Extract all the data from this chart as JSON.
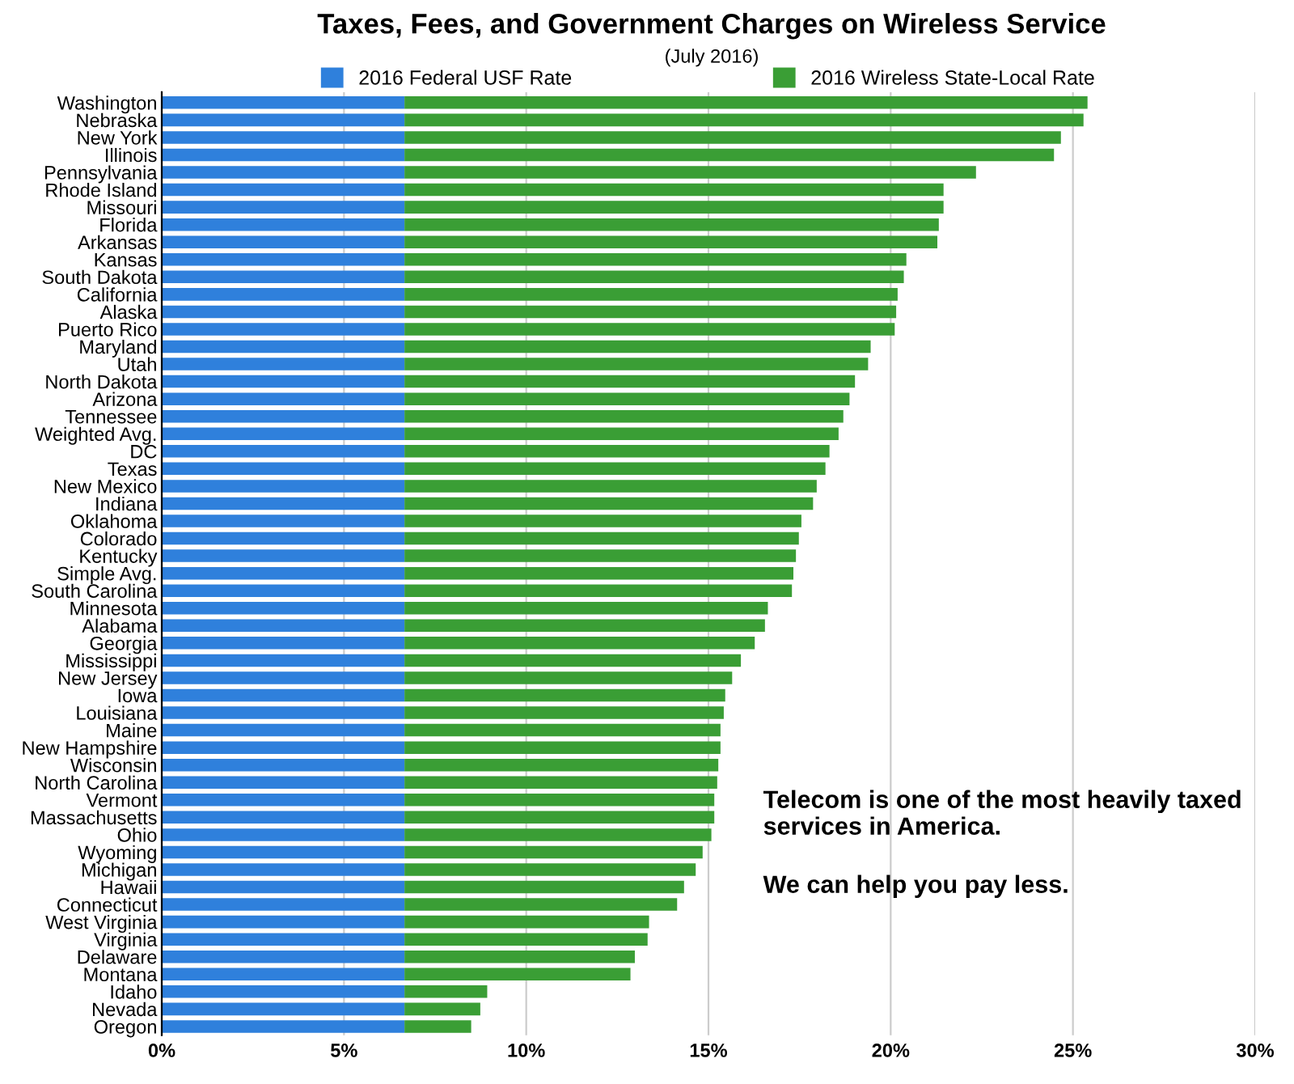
{
  "chart_data": {
    "type": "bar",
    "orientation": "horizontal",
    "stacked": true,
    "title": "Taxes, Fees, and Government Charges on Wireless Service",
    "subtitle": "(July 2016)",
    "categories": [
      "Washington",
      "Nebraska",
      "New York",
      "Illinois",
      "Pennsylvania",
      "Rhode Island",
      "Missouri",
      "Florida",
      "Arkansas",
      "Kansas",
      "South Dakota",
      "California",
      "Alaska",
      "Puerto Rico",
      "Maryland",
      "Utah",
      "North Dakota",
      "Arizona",
      "Tennessee",
      "Weighted Avg.",
      "DC",
      "Texas",
      "New Mexico",
      "Indiana",
      "Oklahoma",
      "Colorado",
      "Kentucky",
      "Simple Avg.",
      "South Carolina",
      "Minnesota",
      "Alabama",
      "Georgia",
      "Mississippi",
      "New Jersey",
      "Iowa",
      "Louisiana",
      "Maine",
      "New Hampshire",
      "Wisconsin",
      "North Carolina",
      "Vermont",
      "Massachusetts",
      "Ohio",
      "Wyoming",
      "Michigan",
      "Hawaii",
      "Connecticut",
      "West Virginia",
      "Virginia",
      "Delaware",
      "Montana",
      "Idaho",
      "Nevada",
      "Oregon"
    ],
    "series": [
      {
        "name": "2016 Federal USF Rate",
        "color": "#2f80dc",
        "values": [
          6.66,
          6.66,
          6.66,
          6.66,
          6.66,
          6.66,
          6.66,
          6.66,
          6.66,
          6.66,
          6.66,
          6.66,
          6.66,
          6.66,
          6.66,
          6.66,
          6.66,
          6.66,
          6.66,
          6.66,
          6.66,
          6.66,
          6.66,
          6.66,
          6.66,
          6.66,
          6.66,
          6.66,
          6.66,
          6.66,
          6.66,
          6.66,
          6.66,
          6.66,
          6.66,
          6.66,
          6.66,
          6.66,
          6.66,
          6.66,
          6.66,
          6.66,
          6.66,
          6.66,
          6.66,
          6.66,
          6.66,
          6.66,
          6.66,
          6.66,
          6.66,
          6.66,
          6.66,
          6.66
        ]
      },
      {
        "name": "2016 Wireless State-Local Rate",
        "color": "#3a9e35",
        "values": [
          18.74,
          18.63,
          18.01,
          17.82,
          15.68,
          14.79,
          14.79,
          14.66,
          14.62,
          13.77,
          13.7,
          13.53,
          13.49,
          13.45,
          12.79,
          12.72,
          12.36,
          12.21,
          12.04,
          11.91,
          11.66,
          11.55,
          11.31,
          11.21,
          10.89,
          10.82,
          10.74,
          10.67,
          10.63,
          9.97,
          9.89,
          9.61,
          9.23,
          8.99,
          8.8,
          8.76,
          8.67,
          8.67,
          8.61,
          8.58,
          8.5,
          8.5,
          8.42,
          8.18,
          7.99,
          7.67,
          7.48,
          6.71,
          6.67,
          6.32,
          6.2,
          2.27,
          2.08,
          1.83
        ]
      }
    ],
    "xlim": [
      0,
      30
    ],
    "xticks": [
      {
        "value": 0,
        "label": "0%"
      },
      {
        "value": 5,
        "label": "5%"
      },
      {
        "value": 10,
        "label": "10%"
      },
      {
        "value": 15,
        "label": "15%"
      },
      {
        "value": 20,
        "label": "20%"
      },
      {
        "value": 25,
        "label": "25%"
      },
      {
        "value": 30,
        "label": "30%"
      }
    ],
    "grid": "x",
    "legend": "top",
    "annotations": [
      "Telecom is one of the most heavily taxed services in America.",
      "We can help you pay less."
    ]
  }
}
